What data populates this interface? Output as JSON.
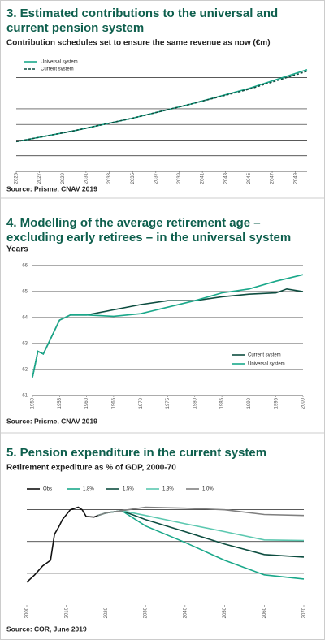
{
  "chart_data": [
    {
      "type": "line",
      "title": "3. Estimated contributions to the universal and current pension system",
      "subtitle": "Contribution schedules set to ensure the same revenue as now (€m)",
      "source": "Source: Prisme, CNAV 2019",
      "xlim": [
        2025,
        2050
      ],
      "xticks": [
        2025,
        2027,
        2029,
        2031,
        2033,
        2035,
        2037,
        2039,
        2041,
        2043,
        2045,
        2047,
        2049
      ],
      "ylim": [
        0,
        6.8
      ],
      "yticks": [
        0,
        1,
        2,
        3,
        4,
        5,
        6
      ],
      "ytick_labels": false,
      "grid": true,
      "legend": "upper left",
      "series": [
        {
          "name": "Universal system",
          "color": "#1aa88a",
          "dash": false,
          "x": [
            2025,
            2030,
            2035,
            2040,
            2045,
            2050
          ],
          "values": [
            1.9,
            2.6,
            3.4,
            4.3,
            5.3,
            6.5
          ]
        },
        {
          "name": "Current system",
          "color": "#0d4d40",
          "dash": true,
          "x": [
            2025,
            2030,
            2035,
            2040,
            2045,
            2050
          ],
          "values": [
            1.9,
            2.6,
            3.4,
            4.3,
            5.25,
            6.4
          ]
        }
      ]
    },
    {
      "type": "line",
      "title": "4. Modelling of the average retirement age – excluding early retirees – in the universal system",
      "subtitle": "Years",
      "source": "Source: Prisme, CNAV 2019",
      "xlim": [
        1950,
        2000
      ],
      "xticks": [
        1950,
        1955,
        1960,
        1965,
        1970,
        1975,
        1980,
        1985,
        1990,
        1995,
        2000
      ],
      "ylim": [
        61,
        66
      ],
      "yticks": [
        61,
        62,
        63,
        64,
        65,
        66
      ],
      "ytick_labels": true,
      "grid": true,
      "legend": "center right",
      "series": [
        {
          "name": "Current system",
          "color": "#0d4d40",
          "dash": false,
          "x": [
            1950,
            1951,
            1952,
            1955,
            1957,
            1960,
            1965,
            1970,
            1975,
            1980,
            1985,
            1990,
            1995,
            1997,
            2000
          ],
          "values": [
            61.7,
            62.7,
            62.6,
            63.9,
            64.1,
            64.1,
            64.3,
            64.5,
            64.65,
            64.65,
            64.8,
            64.9,
            64.95,
            65.1,
            65.0
          ]
        },
        {
          "name": "Universal system",
          "color": "#1aa88a",
          "dash": false,
          "x": [
            1950,
            1951,
            1952,
            1955,
            1957,
            1960,
            1965,
            1970,
            1975,
            1980,
            1985,
            1990,
            1995,
            2000
          ],
          "values": [
            61.7,
            62.7,
            62.6,
            63.9,
            64.1,
            64.1,
            64.05,
            64.15,
            64.4,
            64.65,
            64.95,
            65.1,
            65.4,
            65.65
          ]
        }
      ]
    },
    {
      "type": "line",
      "title": "5. Pension expenditure in the current system",
      "subtitle": "Retirement expediture as % of GDP, 2000-70",
      "source": "Source: COR, June 2019",
      "xlim": [
        2000,
        2070
      ],
      "xticks": [
        2000,
        2010,
        2020,
        2030,
        2040,
        2050,
        2060,
        2070
      ],
      "ylim": [
        11,
        14.4
      ],
      "yticks": [
        12,
        13,
        14
      ],
      "ytick_labels": false,
      "grid": true,
      "legend": "top",
      "series": [
        {
          "name": "Obs",
          "color": "#111111",
          "dash": false,
          "x": [
            2000,
            2002,
            2004,
            2006,
            2007,
            2008,
            2009,
            2011,
            2013,
            2014,
            2015,
            2017,
            2018
          ],
          "values": [
            11.72,
            11.95,
            12.23,
            12.41,
            13.23,
            13.44,
            13.69,
            14.0,
            14.08,
            14.0,
            13.79,
            13.77,
            13.82
          ]
        },
        {
          "name": "1.8%",
          "color": "#1aa88a",
          "dash": false,
          "x": [
            2018,
            2020,
            2024,
            2030,
            2040,
            2050,
            2060,
            2070
          ],
          "values": [
            13.82,
            13.9,
            13.97,
            13.49,
            12.97,
            12.41,
            11.95,
            11.82
          ]
        },
        {
          "name": "1.5%",
          "color": "#0d4d40",
          "dash": false,
          "x": [
            2018,
            2020,
            2024,
            2030,
            2040,
            2050,
            2060,
            2070
          ],
          "values": [
            13.82,
            13.9,
            13.97,
            13.69,
            13.31,
            12.92,
            12.59,
            12.51
          ]
        },
        {
          "name": "1.3%",
          "color": "#5cc8b0",
          "dash": false,
          "x": [
            2018,
            2020,
            2024,
            2030,
            2040,
            2050,
            2060,
            2070
          ],
          "values": [
            13.82,
            13.9,
            13.97,
            13.82,
            13.56,
            13.31,
            13.05,
            13.03
          ]
        },
        {
          "name": "1.0%",
          "color": "#808080",
          "dash": false,
          "x": [
            2018,
            2020,
            2024,
            2030,
            2040,
            2050,
            2060,
            2070
          ],
          "values": [
            13.82,
            13.9,
            13.97,
            14.08,
            14.05,
            14.0,
            13.85,
            13.82
          ]
        }
      ]
    }
  ]
}
